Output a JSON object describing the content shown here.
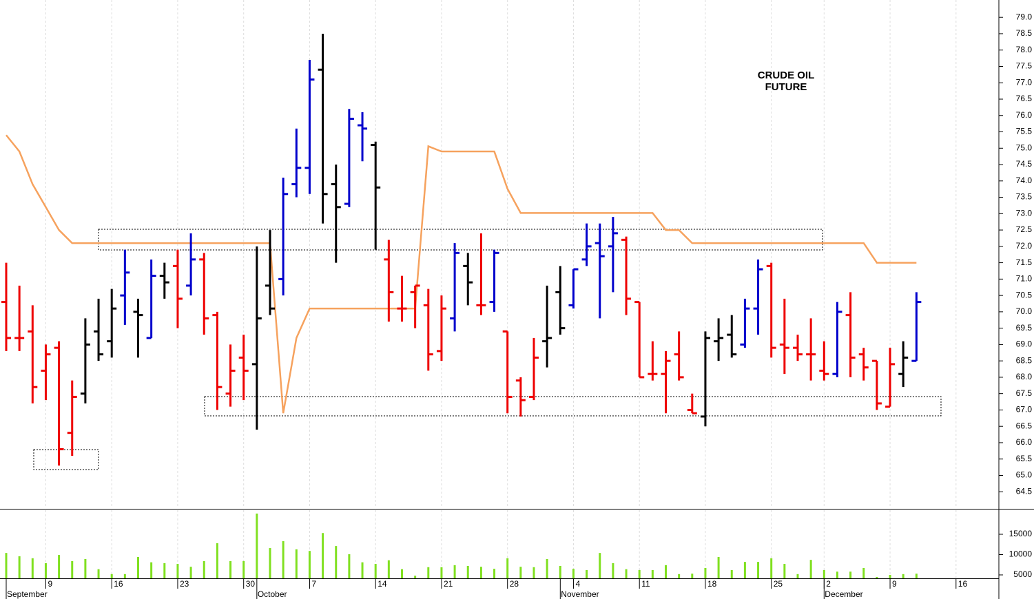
{
  "chart_data": [
    {
      "type": "ohlc",
      "title": [
        "CRUDE OIL",
        "FUTURE"
      ],
      "categories": [
        null,
        null,
        null,
        "9",
        null,
        null,
        null,
        null,
        "16",
        null,
        null,
        null,
        null,
        "23",
        null,
        null,
        null,
        null,
        "30",
        null,
        null,
        null,
        null,
        "7",
        null,
        null,
        null,
        null,
        "14",
        null,
        null,
        null,
        null,
        "21",
        null,
        null,
        null,
        null,
        "28",
        null,
        null,
        null,
        null,
        "4",
        null,
        null,
        null,
        null,
        "11",
        null,
        null,
        null,
        null,
        "18",
        null,
        null,
        null,
        null,
        "25",
        null,
        null,
        null,
        "2",
        null,
        null,
        null,
        null,
        "9",
        null,
        null,
        null,
        null,
        "16",
        null,
        null,
        null
      ],
      "month_labels": [
        "September",
        null,
        null,
        null,
        null,
        null,
        null,
        null,
        null,
        null,
        null,
        null,
        null,
        null,
        null,
        null,
        null,
        null,
        null,
        "October",
        null,
        null,
        null,
        null,
        null,
        null,
        null,
        null,
        null,
        null,
        null,
        null,
        null,
        null,
        null,
        null,
        null,
        null,
        null,
        null,
        null,
        null,
        "November",
        null,
        null,
        null,
        null,
        null,
        null,
        null,
        null,
        null,
        null,
        null,
        null,
        null,
        null,
        null,
        null,
        null,
        null,
        null,
        "December",
        null,
        null,
        null,
        null,
        null,
        null,
        null,
        null,
        null,
        null,
        null,
        null,
        null
      ],
      "open": [
        70.3,
        69.2,
        69.4,
        68.2,
        68.9,
        66.3,
        67.5,
        69.4,
        69.1,
        70.5,
        70.0,
        69.2,
        71.1,
        71.4,
        70.8,
        71.6,
        69.9,
        67.5,
        68.6,
        68.4,
        70.8,
        71.0,
        73.9,
        74.4,
        77.4,
        73.9,
        73.3,
        75.7,
        75.1,
        71.6,
        70.1,
        70.6,
        70.2,
        68.8,
        69.8,
        71.4,
        70.2,
        70.3,
        69.4,
        67.9,
        67.4,
        69.1,
        70.6,
        70.2,
        71.6,
        72.1,
        72.0,
        72.2,
        70.3,
        68.1,
        68.1,
        68.7,
        67.0,
        66.8,
        69.1,
        69.3,
        69.0,
        70.1,
        71.4,
        69.0,
        68.9,
        68.7,
        68.2,
        68.1,
        69.9,
        68.7,
        68.5,
        67.1,
        68.1,
        68.5,
        null,
        null,
        null,
        null,
        null,
        null
      ],
      "high": [
        71.5,
        70.8,
        70.2,
        69.0,
        69.1,
        67.9,
        69.8,
        70.4,
        70.7,
        71.9,
        70.4,
        71.6,
        71.5,
        71.9,
        72.4,
        71.8,
        70.0,
        69.0,
        69.3,
        72.0,
        72.5,
        74.1,
        75.6,
        77.7,
        78.5,
        74.5,
        76.2,
        76.1,
        75.2,
        72.2,
        71.1,
        70.8,
        70.7,
        70.5,
        72.1,
        71.8,
        72.4,
        71.9,
        69.4,
        68.0,
        69.2,
        70.8,
        71.4,
        71.3,
        72.7,
        72.7,
        72.9,
        72.3,
        70.3,
        69.1,
        68.8,
        69.4,
        67.5,
        69.4,
        69.8,
        69.9,
        70.4,
        71.6,
        71.5,
        70.4,
        69.3,
        69.8,
        69.1,
        70.3,
        70.6,
        68.9,
        68.5,
        68.9,
        69.1,
        70.6,
        null,
        null,
        null,
        null,
        null,
        null
      ],
      "low": [
        68.8,
        68.8,
        67.2,
        67.3,
        65.3,
        65.6,
        67.2,
        68.5,
        68.6,
        69.6,
        68.6,
        69.2,
        70.4,
        69.5,
        70.5,
        69.3,
        67.0,
        67.1,
        67.3,
        66.4,
        69.9,
        70.5,
        73.5,
        73.6,
        72.7,
        71.5,
        73.2,
        74.6,
        71.9,
        69.7,
        69.7,
        69.5,
        68.2,
        68.5,
        69.4,
        70.2,
        69.9,
        70.0,
        66.9,
        66.8,
        67.3,
        68.3,
        69.3,
        70.1,
        71.4,
        69.8,
        70.6,
        69.9,
        68.0,
        67.9,
        66.9,
        67.9,
        66.9,
        66.5,
        68.5,
        68.6,
        68.9,
        69.3,
        68.6,
        68.1,
        68.5,
        67.9,
        67.9,
        68.0,
        68.0,
        67.9,
        67.0,
        67.1,
        67.7,
        68.5,
        null,
        null,
        null,
        null,
        null,
        null
      ],
      "close": [
        69.2,
        69.2,
        67.7,
        68.7,
        65.8,
        67.4,
        69.0,
        68.7,
        70.1,
        71.2,
        69.9,
        71.1,
        70.9,
        70.4,
        71.6,
        69.8,
        67.7,
        68.2,
        68.2,
        69.8,
        70.1,
        73.6,
        74.4,
        77.1,
        73.6,
        73.2,
        75.9,
        75.6,
        73.8,
        70.6,
        70.1,
        70.8,
        68.7,
        70.1,
        71.8,
        70.9,
        70.2,
        71.8,
        67.4,
        67.3,
        68.6,
        69.2,
        69.5,
        71.3,
        72.0,
        71.7,
        72.4,
        70.4,
        68.0,
        68.1,
        68.5,
        68.0,
        66.9,
        69.2,
        69.2,
        68.7,
        70.1,
        71.3,
        68.9,
        68.9,
        68.7,
        68.7,
        68.1,
        70.0,
        68.6,
        68.3,
        67.2,
        68.4,
        68.6,
        70.3,
        null,
        null,
        null,
        null,
        null,
        null
      ],
      "colors": [
        "#ee0000",
        "#ee0000",
        "#ee0000",
        "#ee0000",
        "#ee0000",
        "#ee0000",
        "#000000",
        "#000000",
        "#000000",
        "#0000cc",
        "#000000",
        "#0000cc",
        "#000000",
        "#ee0000",
        "#0000cc",
        "#ee0000",
        "#ee0000",
        "#ee0000",
        "#ee0000",
        "#000000",
        "#000000",
        "#0000cc",
        "#0000cc",
        "#0000cc",
        "#000000",
        "#000000",
        "#0000cc",
        "#0000cc",
        "#000000",
        "#ee0000",
        "#ee0000",
        "#ee0000",
        "#ee0000",
        "#ee0000",
        "#0000cc",
        "#000000",
        "#ee0000",
        "#0000cc",
        "#ee0000",
        "#ee0000",
        "#ee0000",
        "#000000",
        "#000000",
        "#0000cc",
        "#0000cc",
        "#0000cc",
        "#0000cc",
        "#ee0000",
        "#ee0000",
        "#ee0000",
        "#ee0000",
        "#ee0000",
        "#ee0000",
        "#000000",
        "#000000",
        "#000000",
        "#0000cc",
        "#0000cc",
        "#ee0000",
        "#ee0000",
        "#ee0000",
        "#ee0000",
        "#ee0000",
        "#0000cc",
        "#ee0000",
        "#ee0000",
        "#ee0000",
        "#ee0000",
        "#000000",
        "#0000cc",
        null,
        null,
        null,
        null,
        null,
        null
      ],
      "overlay": {
        "color": "#f6a25e",
        "values": [
          75.4,
          74.9,
          73.9,
          73.2,
          72.5,
          72.1,
          72.1,
          72.1,
          72.1,
          72.1,
          72.1,
          72.1,
          72.1,
          72.1,
          72.1,
          72.1,
          72.1,
          72.1,
          72.1,
          72.1,
          72.1,
          66.9,
          69.2,
          70.1,
          70.1,
          70.1,
          70.1,
          70.1,
          70.1,
          70.1,
          70.1,
          70.1,
          75.06,
          74.9,
          74.9,
          74.9,
          74.9,
          74.9,
          73.76,
          73.02,
          73.02,
          73.02,
          73.02,
          73.02,
          73.02,
          73.02,
          73.02,
          73.02,
          73.02,
          73.02,
          72.5,
          72.5,
          72.1,
          72.1,
          72.1,
          72.1,
          72.1,
          72.1,
          72.1,
          72.1,
          72.1,
          72.1,
          72.1,
          72.1,
          72.1,
          72.1,
          71.5,
          71.5,
          71.5,
          71.5,
          null,
          null,
          null,
          null,
          null,
          null
        ]
      },
      "ylim": [
        64.0,
        79.53
      ],
      "yticks": [
        64.5,
        {
          "value": 65,
          "label": "65.0"
        },
        65.5,
        {
          "value": 66,
          "label": "66.0"
        },
        66.5,
        {
          "value": 67,
          "label": "67.0"
        },
        67.5,
        {
          "value": 68,
          "label": "68.0"
        },
        68.5,
        {
          "value": 69,
          "label": "69.0"
        },
        69.5,
        {
          "value": 70,
          "label": "70.0"
        },
        70.5,
        {
          "value": 71,
          "label": "71.0"
        },
        71.5,
        {
          "value": 72,
          "label": "72.0"
        },
        72.5,
        {
          "value": 73,
          "label": "73.0"
        },
        73.5,
        {
          "value": 74,
          "label": "74.0"
        },
        74.5,
        {
          "value": 75,
          "label": "75.0"
        },
        75.5,
        {
          "value": 76,
          "label": "76.0"
        },
        76.5,
        {
          "value": 77,
          "label": "77.0"
        },
        77.5,
        {
          "value": 78,
          "label": "78.0"
        },
        78.5,
        {
          "value": 79,
          "label": "79.0"
        }
      ],
      "grid": true
    },
    {
      "type": "bar",
      "color": "#80e020",
      "values": [
        10400,
        9600,
        9100,
        7900,
        9900,
        8400,
        8900,
        6400,
        5200,
        5200,
        9400,
        8100,
        7900,
        7700,
        7000,
        8400,
        12800,
        8400,
        8400,
        20100,
        11600,
        13300,
        11300,
        10900,
        15300,
        12100,
        10100,
        8100,
        7700,
        8600,
        6400,
        4800,
        6900,
        6900,
        7400,
        7200,
        7000,
        6500,
        9100,
        7000,
        6900,
        8900,
        7200,
        6500,
        6200,
        10400,
        7900,
        6400,
        6200,
        6200,
        7400,
        5200,
        5300,
        6700,
        9400,
        6200,
        8200,
        8200,
        9100,
        7700,
        5200,
        8700,
        6200,
        5800,
        5800,
        6700,
        4500,
        5000,
        5200,
        5300,
        null,
        null,
        null,
        null,
        null,
        null
      ],
      "ylim": [
        4150,
        20930
      ],
      "yticks": [
        5000,
        10000,
        15000
      ]
    }
  ]
}
